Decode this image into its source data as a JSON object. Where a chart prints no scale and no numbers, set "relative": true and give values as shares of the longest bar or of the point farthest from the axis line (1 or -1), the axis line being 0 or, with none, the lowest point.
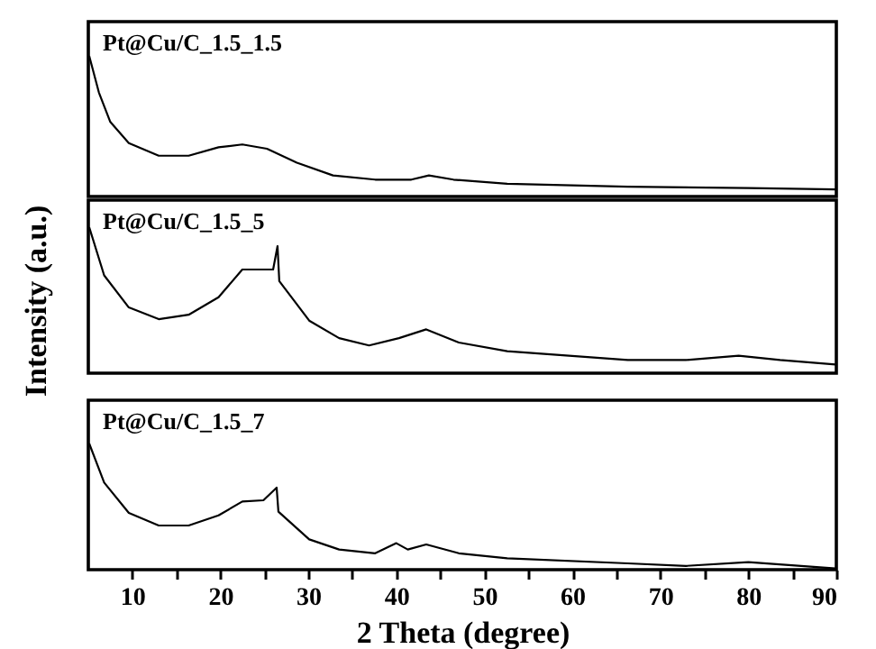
{
  "chart_data": [
    {
      "type": "line",
      "relative": true,
      "xlim": [
        5,
        90
      ],
      "tick_labels": false,
      "grid": false,
      "marker": "none",
      "line_style": "solid",
      "series": [
        {
          "name": "Pt@Cu/C_1.5_1.5",
          "color": "#000000",
          "x": [
            5.1,
            6.2,
            7.5,
            9.6,
            13,
            16.4,
            19.8,
            22.5,
            25.3,
            28.7,
            32.8,
            37.6,
            41.7,
            43.7,
            46.5,
            52.6,
            66.3,
            80,
            89.9
          ],
          "values": [
            1,
            0.74,
            0.53,
            0.38,
            0.29,
            0.29,
            0.35,
            0.37,
            0.34,
            0.24,
            0.15,
            0.12,
            0.12,
            0.15,
            0.12,
            0.09,
            0.07,
            0.06,
            0.05
          ]
        }
      ]
    },
    {
      "type": "line",
      "relative": true,
      "xlim": [
        5,
        90
      ],
      "tick_labels": false,
      "ylabel": "Intensity (a.u.)",
      "grid": false,
      "marker": "none",
      "line_style": "solid",
      "series": [
        {
          "name": "Pt@Cu/C_1.5_5",
          "color": "#000000",
          "x": [
            5.1,
            6.8,
            9.6,
            13,
            16.4,
            19.8,
            22.5,
            26.0,
            26.5,
            26.7,
            30.1,
            33.5,
            36.9,
            40.3,
            43.4,
            47.1,
            52.6,
            66.3,
            72.9,
            78.9,
            83.6,
            89.9
          ],
          "values": [
            1,
            0.67,
            0.45,
            0.37,
            0.4,
            0.52,
            0.71,
            0.71,
            0.87,
            0.63,
            0.36,
            0.24,
            0.19,
            0.24,
            0.3,
            0.21,
            0.15,
            0.09,
            0.09,
            0.12,
            0.09,
            0.06
          ]
        }
      ]
    },
    {
      "type": "line",
      "relative": true,
      "xlim": [
        5,
        90
      ],
      "xticks": [
        10,
        {
          "value": 15,
          "label": null
        },
        20,
        {
          "value": 25,
          "label": null
        },
        30,
        {
          "value": 35,
          "label": null
        },
        40,
        {
          "value": 45,
          "label": null
        },
        50,
        {
          "value": 55,
          "label": null
        },
        60,
        {
          "value": 65,
          "label": null
        },
        70,
        {
          "value": 75,
          "label": null
        },
        80,
        {
          "value": 85,
          "label": null
        },
        90
      ],
      "tick_labels": "x",
      "xlabel": "2 Theta (degree)",
      "grid": false,
      "marker": "none",
      "line_style": "solid",
      "series": [
        {
          "name": "Pt@Cu/C_1.5_7",
          "color": "#000000",
          "x": [
            5.1,
            6.8,
            9.6,
            13,
            16.4,
            19.8,
            22.5,
            24.9,
            26.4,
            26.6,
            30.1,
            33.5,
            37.6,
            40,
            41.3,
            43.4,
            47.1,
            52.6,
            66.3,
            72.9,
            80,
            89.9
          ],
          "values": [
            1,
            0.69,
            0.45,
            0.35,
            0.35,
            0.43,
            0.54,
            0.55,
            0.65,
            0.46,
            0.24,
            0.16,
            0.13,
            0.21,
            0.16,
            0.2,
            0.13,
            0.09,
            0.05,
            0.03,
            0.06,
            0.01
          ]
        }
      ]
    }
  ]
}
